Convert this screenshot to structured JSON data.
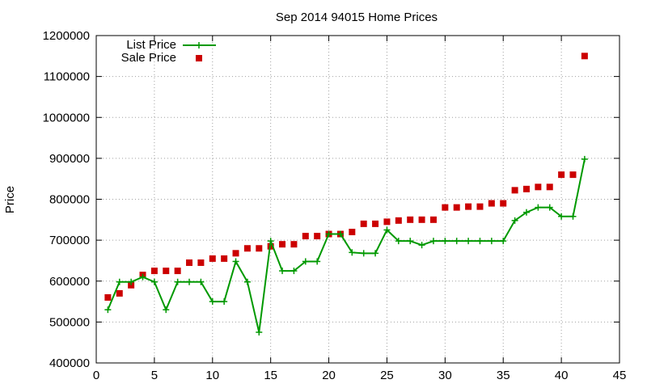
{
  "chart_data": {
    "type": "line",
    "title": "Sep 2014 94015 Home Prices",
    "xlabel": "",
    "ylabel": "Price",
    "xlim": [
      0,
      45
    ],
    "ylim": [
      400000,
      1200000
    ],
    "xticks": [
      0,
      5,
      10,
      15,
      20,
      25,
      30,
      35,
      40,
      45
    ],
    "yticks": [
      400000,
      500000,
      600000,
      700000,
      800000,
      900000,
      1000000,
      1100000,
      1200000
    ],
    "grid": true,
    "legend": "top-left",
    "x": [
      1,
      2,
      3,
      4,
      5,
      6,
      7,
      8,
      9,
      10,
      11,
      12,
      13,
      14,
      15,
      16,
      17,
      18,
      19,
      20,
      21,
      22,
      23,
      24,
      25,
      26,
      27,
      28,
      29,
      30,
      31,
      32,
      33,
      34,
      35,
      36,
      37,
      38,
      39,
      40,
      41,
      42
    ],
    "series": [
      {
        "name": "List Price",
        "style": "linespoints",
        "color": "#009900",
        "values": [
          530000,
          598000,
          598000,
          610000,
          598000,
          530000,
          598000,
          598000,
          598000,
          550000,
          550000,
          648000,
          598000,
          475000,
          698000,
          625000,
          625000,
          648000,
          648000,
          715000,
          715000,
          670000,
          668000,
          668000,
          725000,
          698000,
          698000,
          688000,
          698000,
          698000,
          698000,
          698000,
          698000,
          698000,
          698000,
          748000,
          768000,
          780000,
          780000,
          758000,
          758000,
          898000
        ]
      },
      {
        "name": "Sale Price",
        "style": "points",
        "color": "#cc0000",
        "values": [
          560000,
          570000,
          590000,
          615000,
          625000,
          625000,
          625000,
          645000,
          645000,
          655000,
          655000,
          668000,
          680000,
          680000,
          685000,
          690000,
          690000,
          710000,
          710000,
          715000,
          715000,
          720000,
          740000,
          740000,
          745000,
          748000,
          750000,
          750000,
          750000,
          780000,
          780000,
          782000,
          782000,
          790000,
          790000,
          822000,
          825000,
          830000,
          830000,
          860000,
          860000,
          1150000
        ]
      }
    ]
  }
}
